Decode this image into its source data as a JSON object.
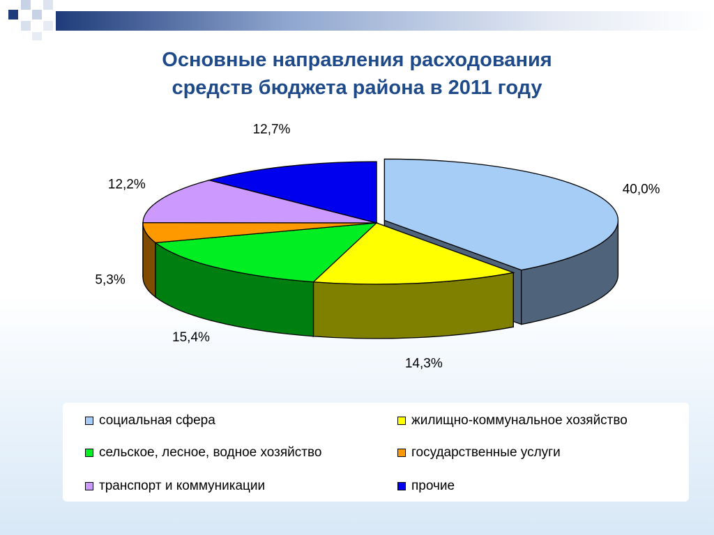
{
  "title": {
    "line1": "Основные направления расходования",
    "line2": "средств бюджета района в 2011 году"
  },
  "chart_data": {
    "type": "pie",
    "style": "3d-exploded",
    "categories": [
      "социальная сфера",
      "жилищно-коммунальное хозяйство",
      "сельское, лесное, водное хозяйство",
      "государственные услуги",
      "транспорт и коммуникации",
      "прочие"
    ],
    "values": [
      40.0,
      14.3,
      15.4,
      5.3,
      12.2,
      12.7
    ],
    "labels": [
      "40,0%",
      "14,3%",
      "15,4%",
      "5,3%",
      "12,2%",
      "12,7%"
    ],
    "colors": [
      "#a6cdf5",
      "#ffff00",
      "#00ee22",
      "#ff9900",
      "#cc99ff",
      "#0000ee"
    ],
    "side_colors": [
      "#4f647a",
      "#7f7f00",
      "#007f11",
      "#7f4c00",
      "#664c7f",
      "#000077"
    ],
    "legend_position": "bottom"
  }
}
